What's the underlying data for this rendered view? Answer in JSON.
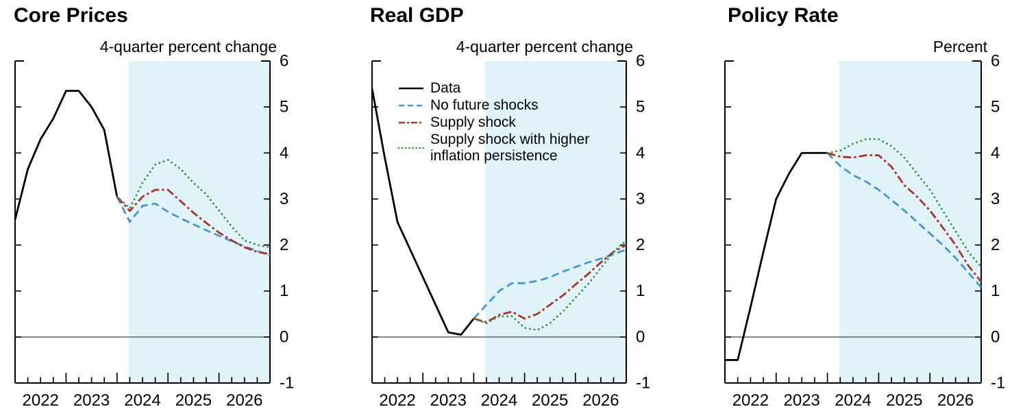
{
  "page": {
    "background": "#ffffff"
  },
  "styles": {
    "forecast_shade": "#dff3f8",
    "zero_line": "#444444",
    "axis": "#000000"
  },
  "legend": {
    "entries": [
      {
        "series_index": 0,
        "lines": [
          "Data"
        ]
      },
      {
        "series_index": 1,
        "lines": [
          "No future shocks"
        ]
      },
      {
        "series_index": 2,
        "lines": [
          "Supply shock"
        ]
      },
      {
        "series_index": 3,
        "lines": [
          "Supply shock with higher",
          "inflation persistence"
        ]
      }
    ]
  },
  "chart_data": [
    {
      "type": "line",
      "title": "Core Prices",
      "unit_label": "4-quarter percent change",
      "x": [
        "2022Q1",
        "2022Q2",
        "2022Q3",
        "2022Q4",
        "2023Q1",
        "2023Q2",
        "2023Q3",
        "2023Q4",
        "2024Q1",
        "2024Q2",
        "2024Q3",
        "2024Q4",
        "2025Q1",
        "2025Q2",
        "2025Q3",
        "2025Q4",
        "2026Q1",
        "2026Q2",
        "2026Q3",
        "2026Q4",
        "2027Q1"
      ],
      "x_year_labels": [
        "2022",
        "2023",
        "2024",
        "2025",
        "2026"
      ],
      "ylim": [
        -1,
        6
      ],
      "y_ticks": [
        -1,
        0,
        1,
        2,
        3,
        4,
        5,
        6
      ],
      "zero_line": true,
      "grid": false,
      "legend_position": "middle-panel-upper-left",
      "forecast_shade_start_index": 8.9,
      "shade_color": "#dff3f8",
      "series": [
        {
          "name": "Data",
          "color": "#000000",
          "style": "solid",
          "values": [
            2.55,
            3.65,
            4.3,
            4.75,
            5.35,
            5.35,
            5.0,
            4.5,
            3.05,
            null,
            null,
            null,
            null,
            null,
            null,
            null,
            null,
            null,
            null,
            null,
            null
          ]
        },
        {
          "name": "No future shocks",
          "color": "#4595dc",
          "style": "dashed",
          "values": [
            null,
            null,
            null,
            null,
            null,
            null,
            null,
            null,
            3.05,
            2.5,
            2.85,
            2.9,
            2.72,
            2.58,
            2.45,
            2.32,
            2.2,
            2.08,
            1.97,
            1.87,
            1.78
          ]
        },
        {
          "name": "Supply shock",
          "color": "#b03226",
          "style": "dashdot",
          "values": [
            null,
            null,
            null,
            null,
            null,
            null,
            null,
            null,
            3.05,
            2.74,
            3.05,
            3.2,
            3.2,
            2.95,
            2.7,
            2.48,
            2.27,
            2.1,
            1.95,
            1.85,
            1.8
          ]
        },
        {
          "name": "Supply shock with higher inflation persistence",
          "color": "#319239",
          "style": "dotted",
          "values": [
            null,
            null,
            null,
            null,
            null,
            null,
            null,
            null,
            3.05,
            2.8,
            3.35,
            3.75,
            3.85,
            3.65,
            3.35,
            3.1,
            2.75,
            2.4,
            2.1,
            2.0,
            1.95
          ]
        }
      ]
    },
    {
      "type": "line",
      "title": "Real GDP",
      "unit_label": "4-quarter percent change",
      "x": [
        "2022Q1",
        "2022Q2",
        "2022Q3",
        "2022Q4",
        "2023Q1",
        "2023Q2",
        "2023Q3",
        "2023Q4",
        "2024Q1",
        "2024Q2",
        "2024Q3",
        "2024Q4",
        "2025Q1",
        "2025Q2",
        "2025Q3",
        "2025Q4",
        "2026Q1",
        "2026Q2",
        "2026Q3",
        "2026Q4",
        "2027Q1"
      ],
      "x_year_labels": [
        "2022",
        "2023",
        "2024",
        "2025",
        "2026"
      ],
      "ylim": [
        -1,
        6
      ],
      "y_ticks": [
        -1,
        0,
        1,
        2,
        3,
        4,
        5,
        6
      ],
      "zero_line": true,
      "grid": false,
      "forecast_shade_start_index": 8.9,
      "shade_color": "#dff3f8",
      "series": [
        {
          "name": "Data",
          "color": "#000000",
          "style": "solid",
          "values": [
            5.4,
            3.9,
            2.5,
            1.9,
            1.3,
            0.7,
            0.1,
            0.05,
            0.4,
            null,
            null,
            null,
            null,
            null,
            null,
            null,
            null,
            null,
            null,
            null,
            null
          ]
        },
        {
          "name": "No future shocks",
          "color": "#4595dc",
          "style": "dashed",
          "values": [
            null,
            null,
            null,
            null,
            null,
            null,
            null,
            null,
            0.4,
            0.7,
            1.0,
            1.17,
            1.17,
            1.22,
            1.3,
            1.42,
            1.52,
            1.62,
            1.7,
            1.8,
            1.9
          ]
        },
        {
          "name": "Supply shock",
          "color": "#b03226",
          "style": "dashdot",
          "values": [
            null,
            null,
            null,
            null,
            null,
            null,
            null,
            null,
            0.4,
            0.32,
            0.48,
            0.55,
            0.4,
            0.5,
            0.7,
            0.9,
            1.14,
            1.37,
            1.62,
            1.85,
            2.0
          ]
        },
        {
          "name": "Supply shock with higher inflation persistence",
          "color": "#319239",
          "style": "dotted",
          "values": [
            null,
            null,
            null,
            null,
            null,
            null,
            null,
            null,
            0.4,
            0.3,
            0.45,
            0.45,
            0.2,
            0.15,
            0.3,
            0.55,
            0.85,
            1.15,
            1.5,
            1.85,
            2.1
          ]
        }
      ]
    },
    {
      "type": "line",
      "title": "Policy Rate",
      "unit_label": "Percent",
      "x": [
        "2022Q1",
        "2022Q2",
        "2022Q3",
        "2022Q4",
        "2023Q1",
        "2023Q2",
        "2023Q3",
        "2023Q4",
        "2024Q1",
        "2024Q2",
        "2024Q3",
        "2024Q4",
        "2025Q1",
        "2025Q2",
        "2025Q3",
        "2025Q4",
        "2026Q1",
        "2026Q2",
        "2026Q3",
        "2026Q4",
        "2027Q1"
      ],
      "x_year_labels": [
        "2022",
        "2023",
        "2024",
        "2025",
        "2026"
      ],
      "ylim": [
        -1,
        6
      ],
      "y_ticks": [
        -1,
        0,
        1,
        2,
        3,
        4,
        5,
        6
      ],
      "zero_line": true,
      "grid": false,
      "forecast_shade_start_index": 8.9,
      "shade_color": "#dff3f8",
      "series": [
        {
          "name": "Data",
          "color": "#000000",
          "style": "solid",
          "values": [
            -0.5,
            -0.5,
            0.65,
            1.85,
            3.0,
            3.55,
            4.0,
            4.0,
            4.0,
            null,
            null,
            null,
            null,
            null,
            null,
            null,
            null,
            null,
            null,
            null,
            null
          ]
        },
        {
          "name": "No future shocks",
          "color": "#4595dc",
          "style": "dashed",
          "values": [
            null,
            null,
            null,
            null,
            null,
            null,
            null,
            null,
            4.0,
            3.72,
            3.52,
            3.38,
            3.2,
            2.98,
            2.75,
            2.5,
            2.25,
            2.0,
            1.72,
            1.4,
            1.08
          ]
        },
        {
          "name": "Supply shock",
          "color": "#b03226",
          "style": "dashdot",
          "values": [
            null,
            null,
            null,
            null,
            null,
            null,
            null,
            null,
            4.0,
            3.92,
            3.9,
            3.95,
            3.95,
            3.7,
            3.3,
            3.05,
            2.75,
            2.38,
            2.0,
            1.55,
            1.2
          ]
        },
        {
          "name": "Supply shock with higher inflation persistence",
          "color": "#319239",
          "style": "dotted",
          "values": [
            null,
            null,
            null,
            null,
            null,
            null,
            null,
            null,
            4.0,
            4.05,
            4.2,
            4.3,
            4.3,
            4.15,
            3.9,
            3.55,
            3.2,
            2.75,
            2.3,
            1.85,
            1.52
          ]
        }
      ]
    }
  ]
}
